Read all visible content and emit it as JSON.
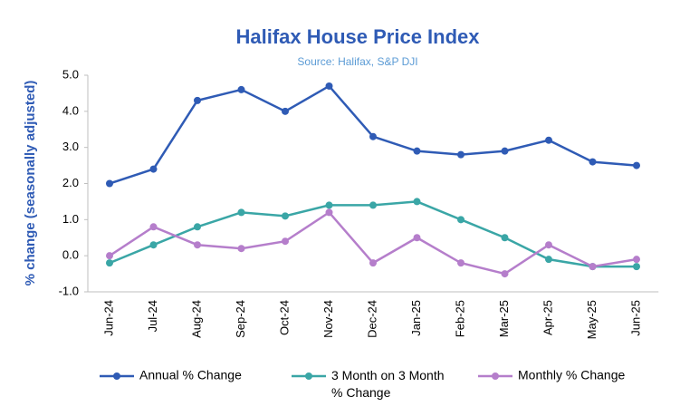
{
  "chart_data": {
    "type": "line",
    "title": "Halifax House Price Index",
    "subtitle": "Source: Halifax, S&P DJI",
    "y_label": "% change (seasonally adjusted)",
    "categories": [
      "Jun-24",
      "Jul-24",
      "Aug-24",
      "Sep-24",
      "Oct-24",
      "Nov-24",
      "Dec-24",
      "Jan-25",
      "Feb-25",
      "Mar-25",
      "Apr-25",
      "May-25",
      "Jun-25"
    ],
    "series": [
      {
        "name": "Annual % Change",
        "color": "#2f5bb5",
        "values": [
          2.0,
          2.4,
          4.3,
          4.6,
          4.0,
          4.7,
          3.3,
          2.9,
          2.8,
          2.9,
          3.2,
          2.6,
          2.5
        ]
      },
      {
        "name": "3 Month on 3 Month % Change",
        "color": "#3aa6a6",
        "values": [
          -0.2,
          0.3,
          0.8,
          1.2,
          1.1,
          1.4,
          1.4,
          1.5,
          1.0,
          0.5,
          -0.1,
          -0.3,
          -0.3
        ]
      },
      {
        "name": "Monthly % Change",
        "color": "#b57ecb",
        "values": [
          0.0,
          0.8,
          0.3,
          0.2,
          0.4,
          1.2,
          -0.2,
          0.5,
          -0.2,
          -0.5,
          0.3,
          -0.3,
          -0.1
        ]
      }
    ],
    "ylim": [
      -1,
      5
    ],
    "yticks": [
      {
        "value": -1,
        "label": "-1.0"
      },
      {
        "value": 0,
        "label": "0.0"
      },
      {
        "value": 1,
        "label": "1.0"
      },
      {
        "value": 2,
        "label": "2.0"
      },
      {
        "value": 3,
        "label": "3.0"
      },
      {
        "value": 4,
        "label": "4.0"
      },
      {
        "value": 5,
        "label": "5.0"
      }
    ],
    "grid": false,
    "legend": "bottom"
  }
}
